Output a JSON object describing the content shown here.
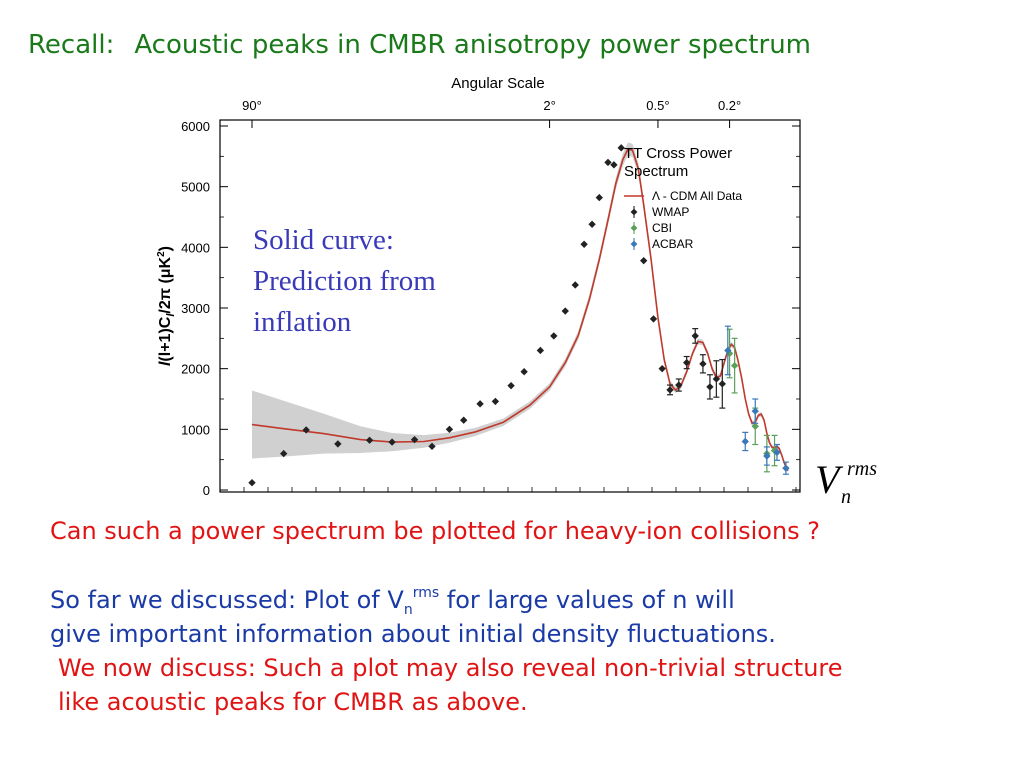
{
  "heading": {
    "prefix": "Recall:",
    "title": "Acoustic peaks in CMBR anisotropy power spectrum"
  },
  "annotation": {
    "line1": "Solid curve:",
    "line2": "Prediction from",
    "line3": "inflation"
  },
  "symbol": {
    "base": "V",
    "sup": "rms",
    "sub": "n"
  },
  "text": {
    "question": "Can such a power spectrum be plotted for heavy-ion collisions ?",
    "discussed_a": "So far we discussed:  Plot of  V",
    "discussed_sub": "n",
    "discussed_sup": "rms",
    "discussed_b": "  for large values of n will",
    "line2": "give important information about initial density fluctuations.",
    "line3": "We now discuss: Such a plot may also reveal non-trivial structure",
    "line4": "like acoustic peaks for CMBR as above."
  },
  "colors": {
    "heading": "#1a7a1a",
    "annotation": "#3a3ab8",
    "red": "#e01414",
    "blue": "#1a3aa6",
    "model_curve": "#c0392b",
    "wmap": "#222222",
    "cbi": "#5aa05a",
    "acbar": "#3a78b8"
  },
  "chart_data": {
    "type": "scatter",
    "top_axis_label": "Angular Scale",
    "top_ticks": [
      {
        "label": "90°",
        "l": 2
      },
      {
        "label": "2°",
        "l": 90
      },
      {
        "label": "0.5°",
        "l": 360
      },
      {
        "label": "0.2°",
        "l": 900
      }
    ],
    "ylabel_parts": [
      "l",
      "(l+1)C",
      "l",
      "/2π (μK",
      "2",
      ")"
    ],
    "ylim": [
      0,
      6000
    ],
    "yticks": [
      0,
      1000,
      2000,
      3000,
      4000,
      5000,
      6000
    ],
    "xscale": "log",
    "legend_title_1": "TT Cross Power",
    "legend_title_2": "Spectrum",
    "legend": [
      {
        "name": "Λ - CDM All Data",
        "kind": "line"
      },
      {
        "name": "WMAP",
        "kind": "wmap"
      },
      {
        "name": "CBI",
        "kind": "cbi"
      },
      {
        "name": "ACBAR",
        "kind": "acbar"
      }
    ],
    "model_curve": [
      [
        2,
        1080
      ],
      [
        3,
        1010
      ],
      [
        5,
        930
      ],
      [
        8,
        830
      ],
      [
        12,
        790
      ],
      [
        18,
        800
      ],
      [
        25,
        860
      ],
      [
        35,
        960
      ],
      [
        50,
        1120
      ],
      [
        70,
        1400
      ],
      [
        90,
        1700
      ],
      [
        110,
        2100
      ],
      [
        130,
        2550
      ],
      [
        150,
        3150
      ],
      [
        170,
        3800
      ],
      [
        190,
        4450
      ],
      [
        210,
        5050
      ],
      [
        230,
        5450
      ],
      [
        245,
        5620
      ],
      [
        260,
        5600
      ],
      [
        280,
        5300
      ],
      [
        300,
        4700
      ],
      [
        330,
        3800
      ],
      [
        360,
        2850
      ],
      [
        390,
        2150
      ],
      [
        420,
        1750
      ],
      [
        450,
        1650
      ],
      [
        480,
        1700
      ],
      [
        520,
        1950
      ],
      [
        560,
        2250
      ],
      [
        600,
        2450
      ],
      [
        640,
        2430
      ],
      [
        680,
        2250
      ],
      [
        720,
        2000
      ],
      [
        760,
        1850
      ],
      [
        800,
        1880
      ],
      [
        840,
        2100
      ],
      [
        880,
        2300
      ],
      [
        920,
        2400
      ],
      [
        960,
        2350
      ],
      [
        1000,
        2150
      ],
      [
        1050,
        1850
      ],
      [
        1100,
        1500
      ],
      [
        1150,
        1250
      ],
      [
        1200,
        1100
      ],
      [
        1250,
        1120
      ],
      [
        1300,
        1230
      ],
      [
        1350,
        1250
      ],
      [
        1400,
        1150
      ],
      [
        1450,
        930
      ],
      [
        1500,
        780
      ],
      [
        1550,
        700
      ],
      [
        1600,
        700
      ],
      [
        1650,
        720
      ],
      [
        1700,
        680
      ],
      [
        1750,
        580
      ],
      [
        1800,
        470
      ],
      [
        1850,
        380
      ],
      [
        1900,
        320
      ]
    ],
    "uncertainty_band_halfwidth": [
      [
        2,
        560
      ],
      [
        3,
        460
      ],
      [
        5,
        330
      ],
      [
        8,
        220
      ],
      [
        12,
        150
      ],
      [
        20,
        90
      ],
      [
        40,
        60
      ],
      [
        100,
        60
      ],
      [
        200,
        90
      ],
      [
        250,
        110
      ],
      [
        400,
        50
      ],
      [
        1900,
        30
      ]
    ],
    "wmap_points": [
      [
        2,
        120,
        0
      ],
      [
        3,
        600,
        0
      ],
      [
        4,
        990,
        0
      ],
      [
        6,
        760,
        0
      ],
      [
        9,
        820,
        0
      ],
      [
        12,
        790,
        0
      ],
      [
        16,
        830,
        0
      ],
      [
        20,
        720,
        0
      ],
      [
        25,
        1000,
        0
      ],
      [
        30,
        1150,
        0
      ],
      [
        37,
        1420,
        0
      ],
      [
        45,
        1460,
        0
      ],
      [
        55,
        1720,
        0
      ],
      [
        65,
        1950,
        0
      ],
      [
        80,
        2300,
        0
      ],
      [
        95,
        2540,
        0
      ],
      [
        110,
        2950,
        0
      ],
      [
        125,
        3380,
        0
      ],
      [
        140,
        4050,
        0
      ],
      [
        155,
        4380,
        0
      ],
      [
        170,
        4820,
        0
      ],
      [
        190,
        5400,
        0
      ],
      [
        205,
        5360,
        0
      ],
      [
        225,
        5640,
        0
      ],
      [
        300,
        3780,
        0
      ],
      [
        340,
        2820,
        0
      ],
      [
        380,
        2000,
        0
      ],
      [
        420,
        1650,
        80
      ],
      [
        470,
        1730,
        100
      ],
      [
        520,
        2100,
        100
      ],
      [
        580,
        2540,
        120
      ],
      [
        640,
        2080,
        150
      ],
      [
        700,
        1700,
        200
      ],
      [
        760,
        1830,
        300
      ],
      [
        820,
        1750,
        400
      ]
    ],
    "cbi_points": [
      [
        900,
        2250,
        400
      ],
      [
        960,
        2050,
        450
      ],
      [
        1250,
        1050,
        300
      ],
      [
        1450,
        600,
        300
      ],
      [
        1600,
        650,
        250
      ]
    ],
    "acbar_points": [
      [
        880,
        2300,
        400
      ],
      [
        1100,
        800,
        150
      ],
      [
        1250,
        1300,
        200
      ],
      [
        1450,
        560,
        150
      ],
      [
        1650,
        620,
        130
      ],
      [
        1850,
        360,
        100
      ]
    ]
  }
}
